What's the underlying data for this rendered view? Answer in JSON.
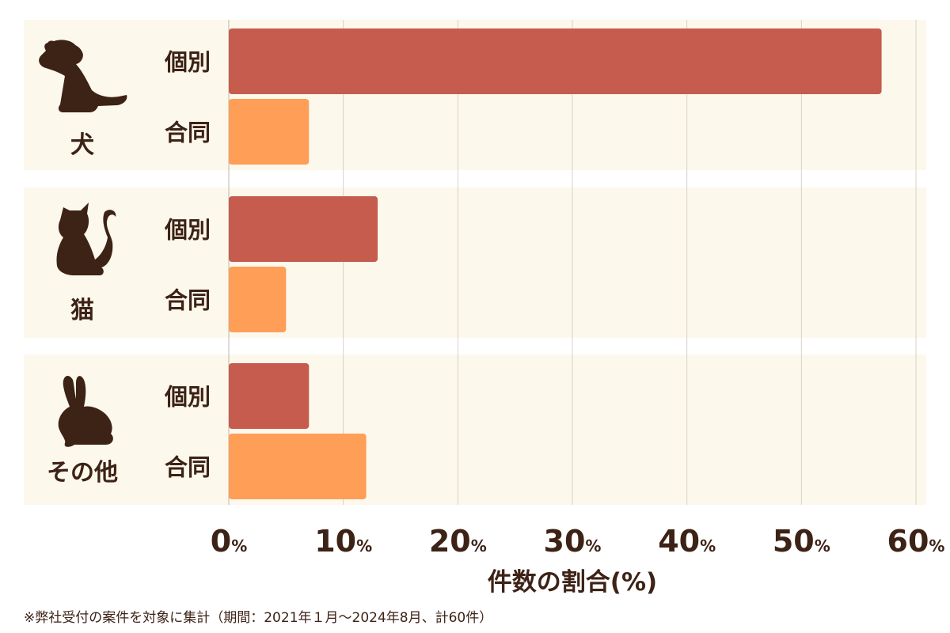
{
  "chart_data": {
    "type": "bar",
    "orientation": "horizontal",
    "groups": [
      {
        "label": "犬",
        "icon": "dog-icon",
        "bars": [
          {
            "label": "個別",
            "value": 57
          },
          {
            "label": "合同",
            "value": 7
          }
        ]
      },
      {
        "label": "猫",
        "icon": "cat-icon",
        "bars": [
          {
            "label": "個別",
            "value": 13
          },
          {
            "label": "合同",
            "value": 5
          }
        ]
      },
      {
        "label": "その他",
        "icon": "rabbit-icon",
        "bars": [
          {
            "label": "個別",
            "value": 7
          },
          {
            "label": "合同",
            "value": 12
          }
        ]
      }
    ],
    "xlabel": "件数の割合(%)",
    "xlim": [
      0,
      60
    ],
    "xticks": [
      0,
      10,
      20,
      30,
      40,
      50,
      60
    ],
    "tick_unit": "%",
    "grid": true,
    "colors": {
      "個別": "#c65c4e",
      "合同": "#ff9e57",
      "panel": "#fdf8ec",
      "text": "#3d2216",
      "grid": "#d8d2c6"
    }
  },
  "footnote": "※弊社受付の案件を対象に集計（期間：2021年１月～2024年8月、計60件）"
}
